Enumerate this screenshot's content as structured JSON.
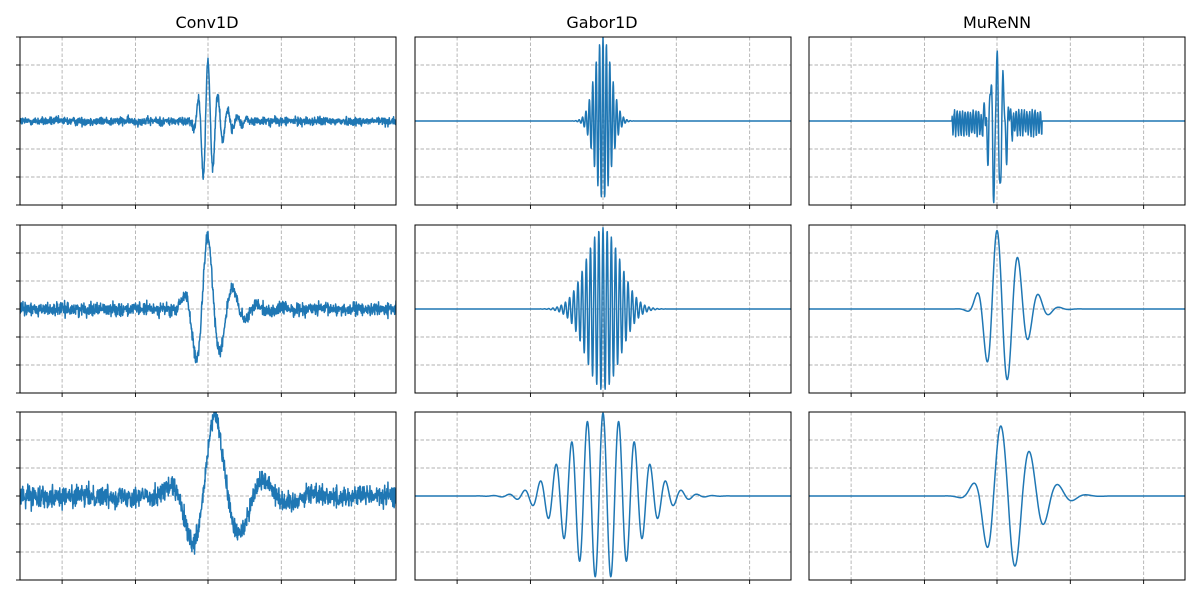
{
  "titles": [
    "Conv1D",
    "Gabor1D",
    "MuReNN"
  ],
  "colors": {
    "line": "#1f77b4",
    "grid": "#b0b0b0",
    "axes": "#000000"
  },
  "chart_data": {
    "type": "line",
    "layout": "3x3 grid of subplots",
    "grid": true,
    "grid_style": "dashed",
    "ticks": "marks only, no tick labels",
    "ylim": [
      -1.5,
      1.5
    ],
    "xlim": [
      0,
      1
    ],
    "columns": [
      {
        "title": "Conv1D",
        "rows": [
          {
            "kind": "noisy",
            "center": 0.5,
            "freq": 38,
            "width": 0.018,
            "decay": 0.03,
            "noise": 0.06,
            "amp_pos": 1.1,
            "amp_neg": 1.3
          },
          {
            "kind": "noisy",
            "center": 0.5,
            "freq": 15,
            "width": 0.035,
            "decay": 0.05,
            "noise": 0.08,
            "amp_pos": 1.3,
            "amp_neg": 1.4
          },
          {
            "kind": "noisy",
            "center": 0.52,
            "freq": 7.5,
            "width": 0.06,
            "decay": 0.08,
            "noise": 0.12,
            "amp_pos": 1.45,
            "amp_neg": 1.5
          }
        ]
      },
      {
        "title": "Gabor1D",
        "rows": [
          {
            "kind": "gabor",
            "center": 0.5,
            "freq": 110,
            "width": 0.022,
            "amp_pos": 1.5,
            "amp_neg": 1.4
          },
          {
            "kind": "gabor",
            "center": 0.5,
            "freq": 90,
            "width": 0.045,
            "amp_pos": 1.45,
            "amp_neg": 1.45
          },
          {
            "kind": "gabor",
            "center": 0.5,
            "freq": 24,
            "width": 0.09,
            "amp_pos": 1.48,
            "amp_neg": 1.48
          }
        ]
      },
      {
        "title": "MuReNN",
        "rows": [
          {
            "kind": "murenn",
            "center": 0.5,
            "freq": 60,
            "width": 0.018,
            "side_amp": 0.2,
            "side_width": 0.12,
            "amp_pos": 1.1,
            "amp_neg": 1.5
          },
          {
            "kind": "wavelet",
            "center": 0.5,
            "freq": 18,
            "width": 0.03,
            "decay": 0.06,
            "amp_pos": 1.4,
            "amp_neg": 1.4
          },
          {
            "kind": "wavelet",
            "center": 0.51,
            "freq": 13,
            "width": 0.04,
            "decay": 0.08,
            "amp_pos": 1.25,
            "amp_neg": 1.4
          }
        ]
      }
    ]
  }
}
